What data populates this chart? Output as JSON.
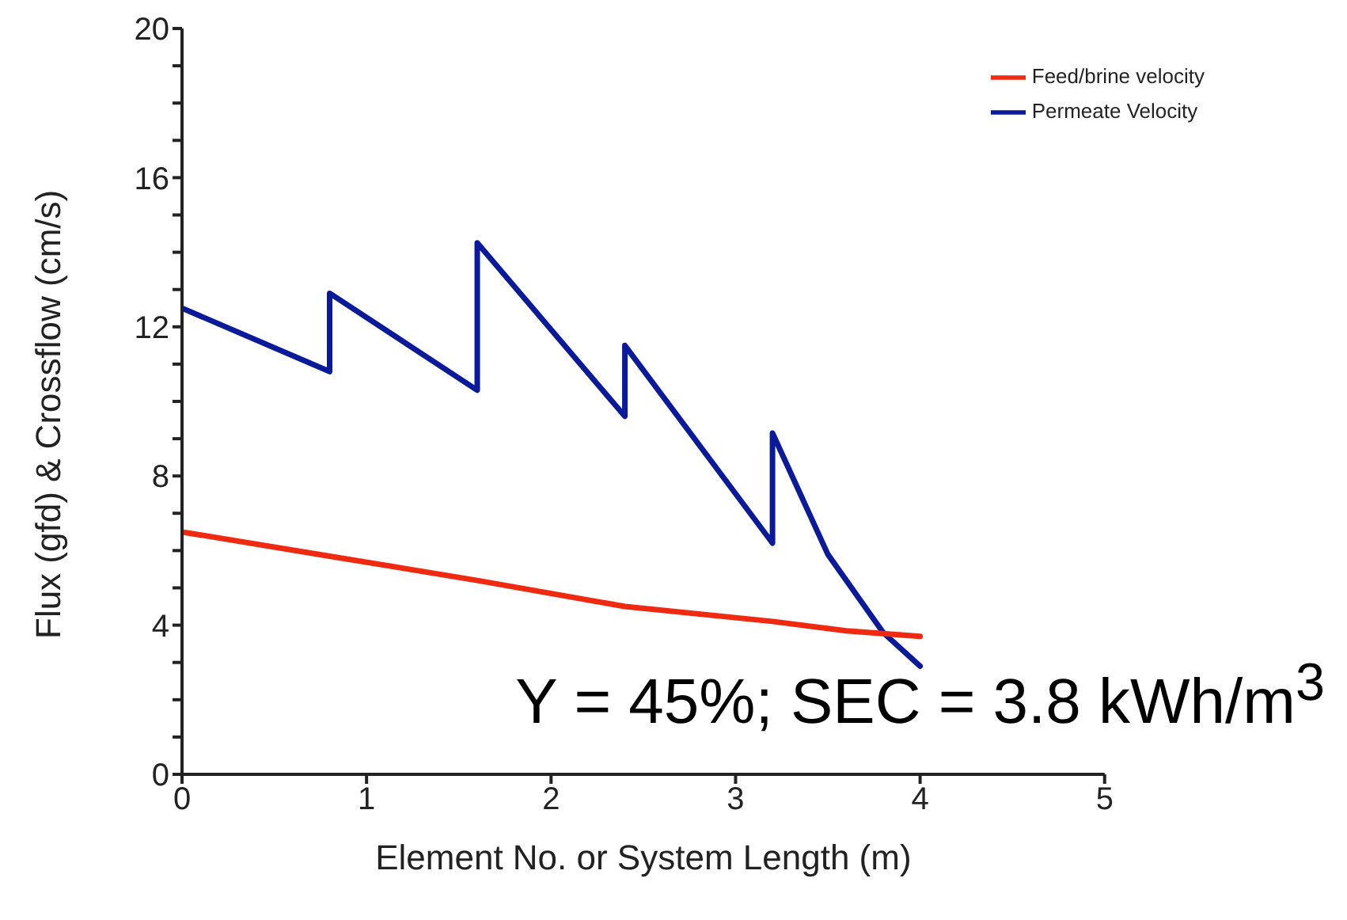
{
  "chart_data": {
    "type": "line",
    "xlabel": "Element No. or System Length (m)",
    "ylabel": "Flux (gfd) & Crossflow (cm/s)",
    "xlim": [
      0,
      5
    ],
    "xticks": [
      0,
      1,
      2,
      3,
      4,
      5
    ],
    "ylim": [
      0,
      20
    ],
    "yticks": [
      0,
      {
        "value": 1,
        "label": null
      },
      {
        "value": 2,
        "label": null
      },
      {
        "value": 3,
        "label": null
      },
      4,
      {
        "value": 5,
        "label": null
      },
      {
        "value": 6,
        "label": null
      },
      {
        "value": 7,
        "label": null
      },
      8,
      {
        "value": 9,
        "label": null
      },
      {
        "value": 10,
        "label": null
      },
      {
        "value": 11,
        "label": null
      },
      12,
      {
        "value": 13,
        "label": null
      },
      {
        "value": 14,
        "label": null
      },
      {
        "value": 15,
        "label": null
      },
      16,
      {
        "value": 17,
        "label": null
      },
      {
        "value": 18,
        "label": null
      },
      {
        "value": 19,
        "label": null
      },
      20
    ],
    "grid": false,
    "legend": "top right",
    "marker": "none",
    "line_style": "solid",
    "series": [
      {
        "name": "Permeate Velocity",
        "color": "#0a1a9a",
        "x": [
          0,
          0.8,
          0.8,
          1.6,
          1.6,
          2.4,
          2.4,
          3.2,
          3.2,
          3.5,
          3.8,
          4.0
        ],
        "values": [
          12.5,
          10.8,
          12.9,
          10.3,
          14.25,
          9.6,
          11.5,
          6.2,
          9.15,
          5.9,
          3.8,
          2.9
        ]
      },
      {
        "name": "Feed/brine velocity",
        "color": "#f02a10",
        "x": [
          0,
          0.8,
          1.6,
          2.4,
          3.2,
          3.6,
          4.0
        ],
        "values": [
          6.5,
          5.85,
          5.2,
          4.5,
          4.1,
          3.85,
          3.7
        ]
      }
    ],
    "annotations": [
      "Y = 45%; SEC = 3.8 kWh/m$^{3}$"
    ]
  }
}
